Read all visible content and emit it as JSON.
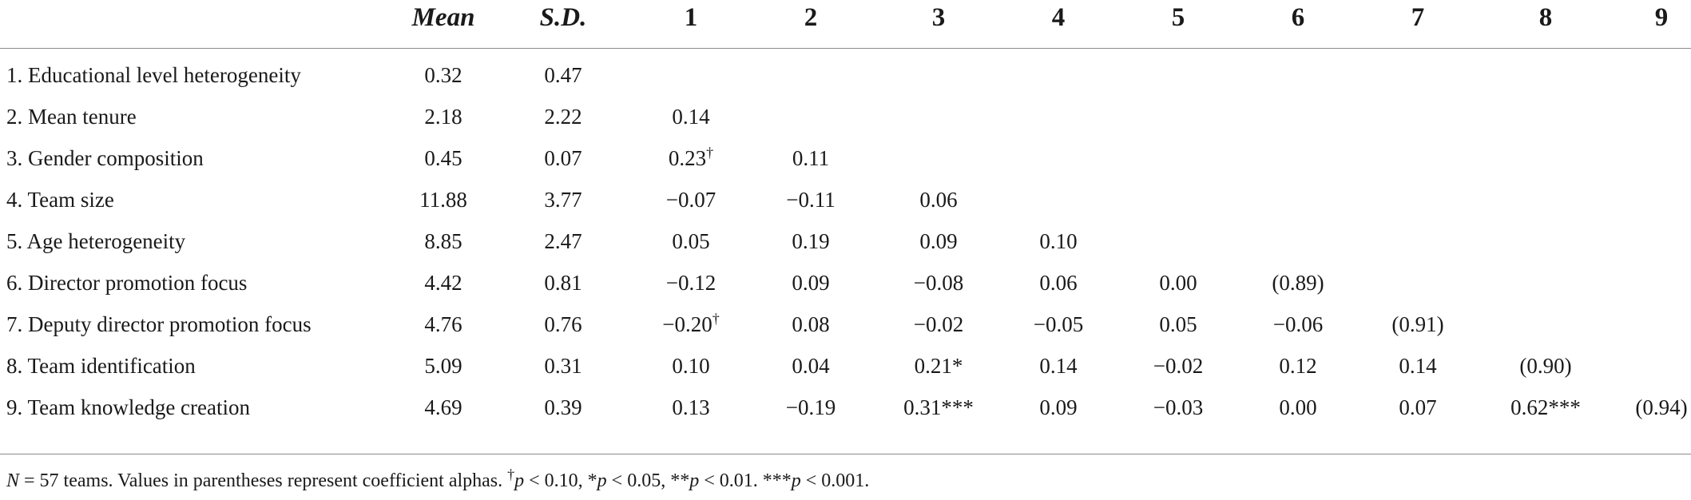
{
  "table": {
    "headers": [
      "Mean",
      "S.D.",
      "1",
      "2",
      "3",
      "4",
      "5",
      "6",
      "7",
      "8",
      "9"
    ],
    "rows": [
      {
        "label": "1. Educational level heterogeneity",
        "values": [
          "0.32",
          "0.47",
          "",
          "",
          "",
          "",
          "",
          "",
          "",
          "",
          ""
        ]
      },
      {
        "label": "2. Mean tenure",
        "values": [
          "2.18",
          "2.22",
          "0.14",
          "",
          "",
          "",
          "",
          "",
          "",
          "",
          ""
        ]
      },
      {
        "label": "3. Gender composition",
        "values": [
          "0.45",
          "0.07",
          "0.23",
          "0.11",
          "",
          "",
          "",
          "",
          "",
          "",
          ""
        ],
        "marks": [
          "",
          "",
          "†",
          "",
          "",
          "",
          "",
          "",
          "",
          "",
          ""
        ]
      },
      {
        "label": "4. Team size",
        "values": [
          "11.88",
          "3.77",
          "−0.07",
          "−0.11",
          "0.06",
          "",
          "",
          "",
          "",
          "",
          ""
        ]
      },
      {
        "label": "5. Age heterogeneity",
        "values": [
          "8.85",
          "2.47",
          "0.05",
          "0.19",
          "0.09",
          "0.10",
          "",
          "",
          "",
          "",
          ""
        ]
      },
      {
        "label": "6. Director promotion focus",
        "values": [
          "4.42",
          "0.81",
          "−0.12",
          "0.09",
          "−0.08",
          "0.06",
          "0.00",
          "(0.89)",
          "",
          "",
          ""
        ]
      },
      {
        "label": "7. Deputy director promotion focus",
        "values": [
          "4.76",
          "0.76",
          "−0.20",
          "0.08",
          "−0.02",
          "−0.05",
          "0.05",
          "−0.06",
          "(0.91)",
          "",
          ""
        ],
        "marks": [
          "",
          "",
          "†",
          "",
          "",
          "",
          "",
          "",
          "",
          "",
          ""
        ]
      },
      {
        "label": "8. Team identification",
        "values": [
          "5.09",
          "0.31",
          "0.10",
          "0.04",
          "0.21*",
          "0.14",
          "−0.02",
          "0.12",
          "0.14",
          "(0.90)",
          ""
        ]
      },
      {
        "label": "9. Team knowledge creation",
        "values": [
          "4.69",
          "0.39",
          "0.13",
          "−0.19",
          "0.31***",
          "0.09",
          "−0.03",
          "0.00",
          "0.07",
          "0.62***",
          "(0.94)"
        ]
      }
    ]
  },
  "footnote": {
    "n_label": "N",
    "n_text": " = 57 teams. Values in parentheses represent coefficient alphas. ",
    "dagger": "†",
    "p1": "p",
    "t1": " < 0.10, *",
    "p2": "p",
    "t2": " < 0.05, **",
    "p3": "p",
    "t3": " < 0.01. ***",
    "p4": "p",
    "t4": " < 0.001."
  }
}
